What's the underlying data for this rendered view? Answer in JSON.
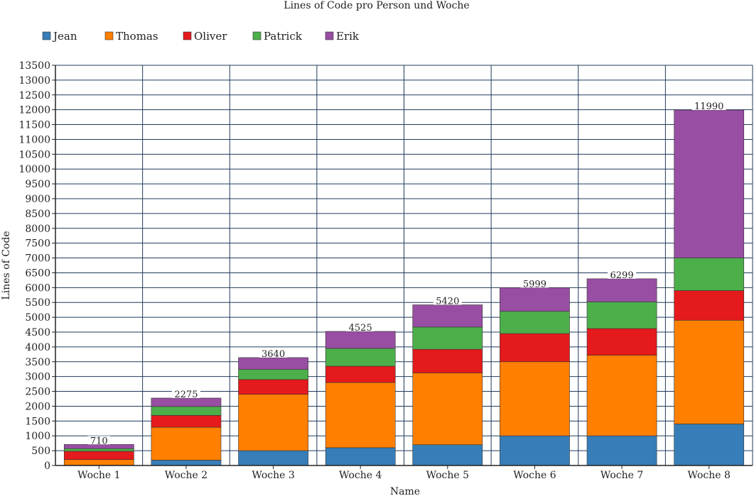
{
  "chart_data": {
    "type": "bar",
    "stacked": true,
    "title": "Lines of Code pro Person und Woche",
    "xlabel": "Name",
    "ylabel": "Lines of Code",
    "ylim": [
      0,
      13500
    ],
    "ytick_step": 500,
    "grid": true,
    "legend_position": "top-left",
    "categories": [
      "Woche 1",
      "Woche 2",
      "Woche 3",
      "Woche 4",
      "Woche 5",
      "Woche 6",
      "Woche 7",
      "Woche 8"
    ],
    "series": [
      {
        "name": "Jean",
        "color": "#377eb8",
        "values": [
          10,
          180,
          500,
          600,
          700,
          1000,
          1000,
          1400
        ]
      },
      {
        "name": "Thomas",
        "color": "#ff7f00",
        "values": [
          190,
          1110,
          1900,
          2200,
          2420,
          2500,
          2720,
          3500
        ]
      },
      {
        "name": "Oliver",
        "color": "#e41a1c",
        "values": [
          280,
          400,
          500,
          550,
          800,
          950,
          900,
          1000
        ]
      },
      {
        "name": "Patrick",
        "color": "#4daf4a",
        "values": [
          90,
          300,
          340,
          600,
          750,
          750,
          900,
          1100
        ]
      },
      {
        "name": "Erik",
        "color": "#984ea3",
        "values": [
          140,
          285,
          400,
          575,
          750,
          799,
          779,
          4990
        ]
      }
    ],
    "totals": [
      "710",
      "2275",
      "3640",
      "4525",
      "5420",
      "5999",
      "6299",
      "11990"
    ]
  }
}
